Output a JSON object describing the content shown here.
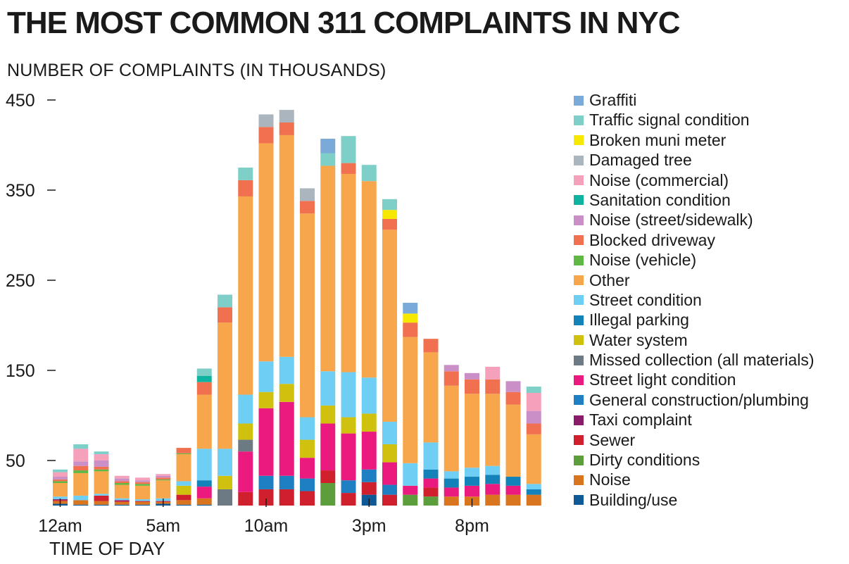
{
  "title": "THE MOST COMMON 311 COMPLAINTS IN NYC",
  "chart_data": {
    "type": "bar",
    "stacked": true,
    "title": "THE MOST COMMON 311 COMPLAINTS IN NYC",
    "ylabel": "NUMBER OF COMPLAINTS (IN THOUSANDS)",
    "xlabel": "TIME OF DAY",
    "ylim": [
      0,
      450
    ],
    "y_ticks": [
      "450",
      "350",
      "250",
      "150",
      "50"
    ],
    "y_tick_values": [
      450,
      350,
      250,
      150,
      50
    ],
    "x_ticks": [
      {
        "label": "12am",
        "hour": 0
      },
      {
        "label": "5am",
        "hour": 5
      },
      {
        "label": "10am",
        "hour": 10
      },
      {
        "label": "3pm",
        "hour": 15
      },
      {
        "label": "8pm",
        "hour": 20
      }
    ],
    "hours": [
      0,
      1,
      2,
      3,
      4,
      5,
      6,
      7,
      8,
      9,
      10,
      11,
      12,
      13,
      14,
      15,
      16,
      17,
      18,
      19,
      20,
      21,
      22,
      23
    ],
    "legend_position": "right",
    "grid": false,
    "series": [
      {
        "name": "Building/use",
        "color": "#0f5a96",
        "values": [
          2,
          1,
          1,
          1,
          1,
          2,
          1,
          1,
          0,
          0,
          0,
          0,
          0,
          0,
          0,
          12,
          0,
          0,
          0,
          0,
          0,
          0,
          0,
          0
        ]
      },
      {
        "name": "Noise",
        "color": "#d9741f",
        "values": [
          3,
          5,
          4,
          3,
          3,
          2,
          5,
          7,
          0,
          0,
          0,
          0,
          0,
          0,
          0,
          0,
          0,
          0,
          0,
          10,
          10,
          12,
          12,
          12
        ]
      },
      {
        "name": "Dirty conditions",
        "color": "#5c9e3c",
        "values": [
          0,
          0,
          0,
          0,
          0,
          0,
          0,
          0,
          0,
          0,
          0,
          0,
          0,
          25,
          0,
          0,
          0,
          12,
          10,
          0,
          0,
          0,
          0,
          0
        ]
      },
      {
        "name": "Sewer",
        "color": "#d0202e",
        "values": [
          1,
          0,
          6,
          1,
          1,
          1,
          6,
          0,
          0,
          15,
          18,
          18,
          16,
          14,
          14,
          14,
          12,
          0,
          10,
          0,
          0,
          0,
          0,
          0
        ]
      },
      {
        "name": "Taxi complaint",
        "color": "#8a1a6a",
        "values": [
          1,
          0,
          0,
          1,
          0,
          0,
          0,
          0,
          0,
          0,
          0,
          0,
          0,
          0,
          0,
          0,
          0,
          0,
          0,
          0,
          0,
          0,
          0,
          0
        ]
      },
      {
        "name": "General construction/plumbing",
        "color": "#1e7fc2",
        "values": [
          0,
          0,
          0,
          0,
          0,
          0,
          0,
          0,
          0,
          0,
          15,
          15,
          14,
          0,
          14,
          14,
          11,
          0,
          0,
          0,
          0,
          0,
          0,
          0
        ]
      },
      {
        "name": "Street light condition",
        "color": "#ea1a7f",
        "values": [
          0,
          0,
          0,
          0,
          0,
          0,
          0,
          13,
          0,
          45,
          75,
          82,
          23,
          52,
          52,
          42,
          25,
          10,
          10,
          10,
          12,
          12,
          10,
          0
        ]
      },
      {
        "name": "Missed collection (all materials)",
        "color": "#6c7a83",
        "values": [
          0,
          0,
          0,
          0,
          0,
          0,
          0,
          0,
          18,
          13,
          0,
          0,
          0,
          0,
          0,
          0,
          0,
          0,
          0,
          0,
          0,
          0,
          0,
          0
        ]
      },
      {
        "name": "Water system",
        "color": "#cfc10d",
        "values": [
          0,
          0,
          0,
          0,
          0,
          0,
          10,
          0,
          15,
          18,
          18,
          20,
          20,
          20,
          18,
          20,
          20,
          0,
          0,
          0,
          0,
          0,
          0,
          0
        ]
      },
      {
        "name": "Illegal parking",
        "color": "#1282b8",
        "values": [
          0,
          0,
          0,
          0,
          0,
          0,
          0,
          7,
          0,
          0,
          0,
          0,
          0,
          0,
          0,
          0,
          0,
          0,
          10,
          10,
          10,
          10,
          10,
          6
        ]
      },
      {
        "name": "Street condition",
        "color": "#6fcef4",
        "values": [
          3,
          5,
          2,
          2,
          2,
          3,
          5,
          35,
          30,
          32,
          34,
          30,
          25,
          38,
          50,
          40,
          25,
          25,
          30,
          8,
          10,
          10,
          0,
          6
        ]
      },
      {
        "name": "Other",
        "color": "#f7a64c",
        "values": [
          15,
          25,
          25,
          15,
          15,
          20,
          30,
          60,
          140,
          220,
          242,
          246,
          226,
          228,
          220,
          218,
          213,
          140,
          100,
          95,
          82,
          80,
          80,
          55
        ]
      },
      {
        "name": "Noise (vehicle)",
        "color": "#5fb843",
        "values": [
          2,
          3,
          2,
          2,
          2,
          1,
          1,
          0,
          0,
          0,
          0,
          0,
          0,
          0,
          0,
          0,
          0,
          0,
          0,
          0,
          0,
          0,
          0,
          0
        ]
      },
      {
        "name": "Blocked driveway",
        "color": "#f0704f",
        "values": [
          2,
          5,
          3,
          2,
          2,
          2,
          6,
          14,
          17,
          18,
          18,
          14,
          14,
          0,
          12,
          0,
          12,
          16,
          15,
          16,
          16,
          16,
          14,
          12
        ]
      },
      {
        "name": "Noise (street/sidewalk)",
        "color": "#cb8fc8",
        "values": [
          3,
          5,
          7,
          3,
          2,
          2,
          0,
          0,
          0,
          0,
          0,
          0,
          0,
          0,
          0,
          0,
          0,
          0,
          0,
          7,
          7,
          0,
          12,
          14
        ]
      },
      {
        "name": "Sanitation condition",
        "color": "#10b3a0",
        "values": [
          0,
          0,
          0,
          0,
          0,
          0,
          0,
          7,
          0,
          0,
          0,
          0,
          0,
          0,
          0,
          0,
          0,
          0,
          0,
          0,
          0,
          0,
          0,
          0
        ]
      },
      {
        "name": "Noise (commercial)",
        "color": "#f6a1bb",
        "values": [
          5,
          14,
          7,
          3,
          3,
          2,
          0,
          0,
          0,
          0,
          0,
          0,
          0,
          0,
          0,
          0,
          0,
          0,
          0,
          0,
          0,
          14,
          0,
          20
        ]
      },
      {
        "name": "Damaged tree",
        "color": "#aab5be",
        "values": [
          0,
          0,
          0,
          0,
          0,
          0,
          0,
          0,
          0,
          0,
          14,
          14,
          14,
          0,
          0,
          0,
          0,
          0,
          0,
          0,
          0,
          0,
          0,
          0
        ]
      },
      {
        "name": "Broken muni meter",
        "color": "#f6e800",
        "values": [
          0,
          0,
          0,
          0,
          0,
          0,
          0,
          0,
          0,
          0,
          0,
          0,
          0,
          0,
          0,
          0,
          10,
          10,
          0,
          0,
          0,
          0,
          0,
          0
        ]
      },
      {
        "name": "Traffic signal condition",
        "color": "#7fcfc9",
        "values": [
          3,
          5,
          3,
          0,
          0,
          0,
          0,
          8,
          14,
          14,
          0,
          0,
          0,
          14,
          30,
          18,
          12,
          0,
          0,
          0,
          0,
          0,
          0,
          7
        ]
      },
      {
        "name": "Graffiti",
        "color": "#7aaad8",
        "values": [
          0,
          0,
          0,
          0,
          0,
          0,
          0,
          0,
          0,
          0,
          0,
          0,
          0,
          16,
          0,
          0,
          0,
          12,
          0,
          0,
          0,
          0,
          0,
          0
        ]
      }
    ]
  }
}
